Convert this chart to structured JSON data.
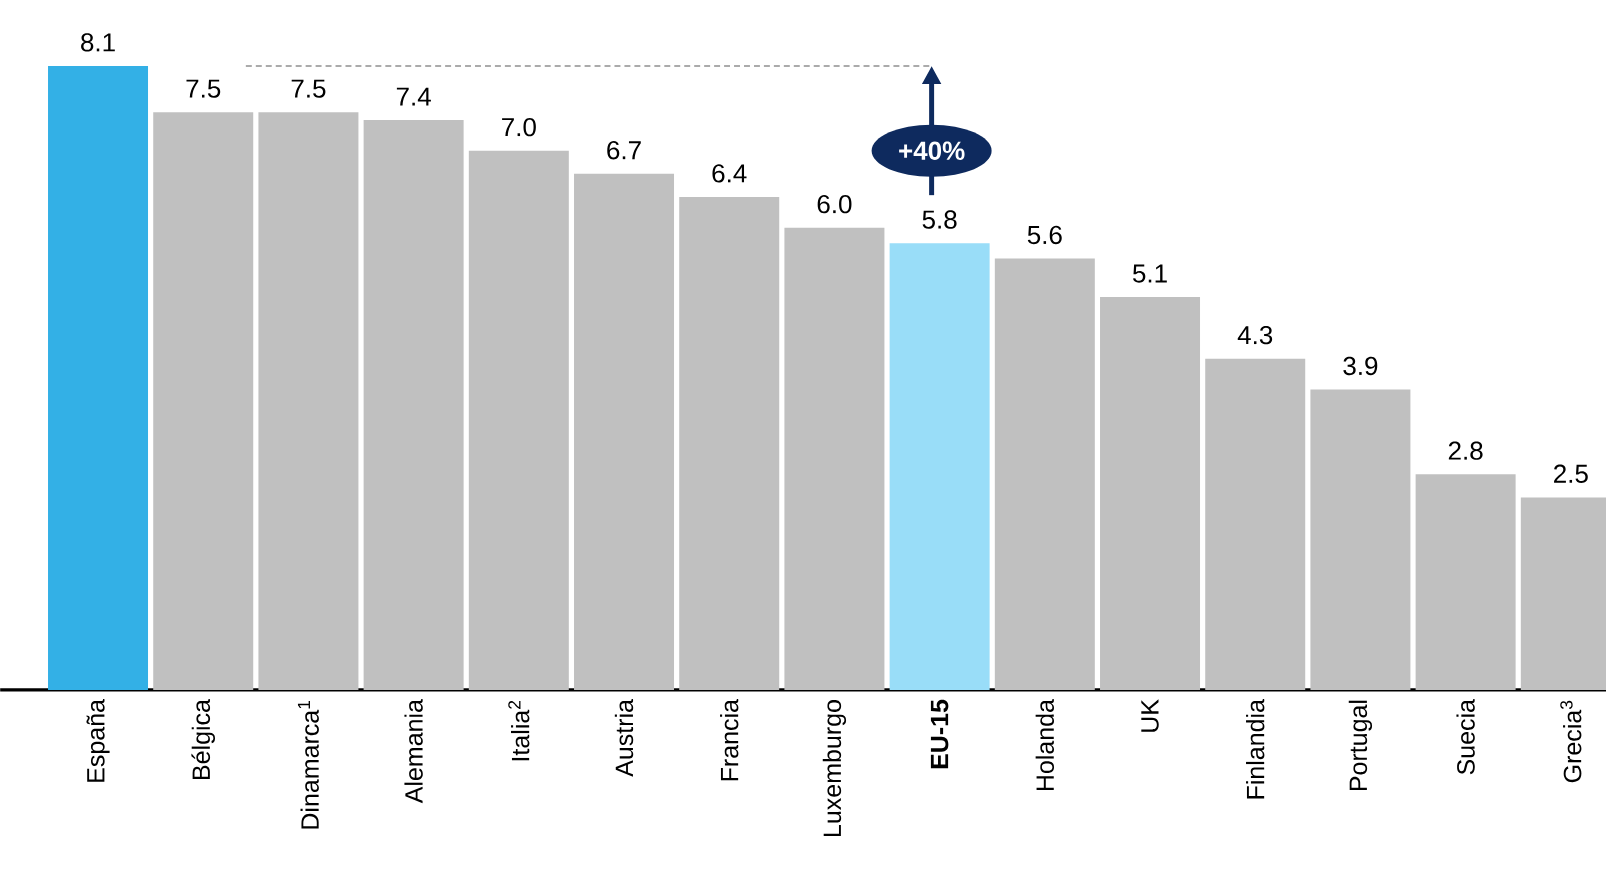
{
  "chart_data": {
    "type": "bar",
    "categories": [
      "España",
      "Bélgica",
      "Dinamarca$^{1}$",
      "Alemania",
      "Italia$^{2}$",
      "Austria",
      "Francia",
      "Luxemburgo",
      "**EU-15**",
      "Holanda",
      "UK",
      "Finlandia",
      "Portugal",
      "Suecia",
      "Grecia$^{3}$"
    ],
    "values": [
      8.1,
      7.5,
      7.5,
      7.4,
      7.0,
      6.7,
      6.4,
      6.0,
      5.8,
      5.6,
      5.1,
      4.3,
      3.9,
      2.8,
      2.5
    ],
    "value_labels": [
      "8.1",
      "7.5",
      "7.5",
      "7.4",
      "7.0",
      "6.7",
      "6.4",
      "6.0",
      "5.8",
      "5.6",
      "5.1",
      "4.3",
      "3.9",
      "2.8",
      "2.5"
    ],
    "colors": [
      "#33b0e6",
      "#c0c0c0",
      "#c0c0c0",
      "#c0c0c0",
      "#c0c0c0",
      "#c0c0c0",
      "#c0c0c0",
      "#c0c0c0",
      "#99ddf8",
      "#c0c0c0",
      "#c0c0c0",
      "#c0c0c0",
      "#c0c0c0",
      "#c0c0c0",
      "#c0c0c0"
    ],
    "annotations": [
      "+40%"
    ]
  }
}
